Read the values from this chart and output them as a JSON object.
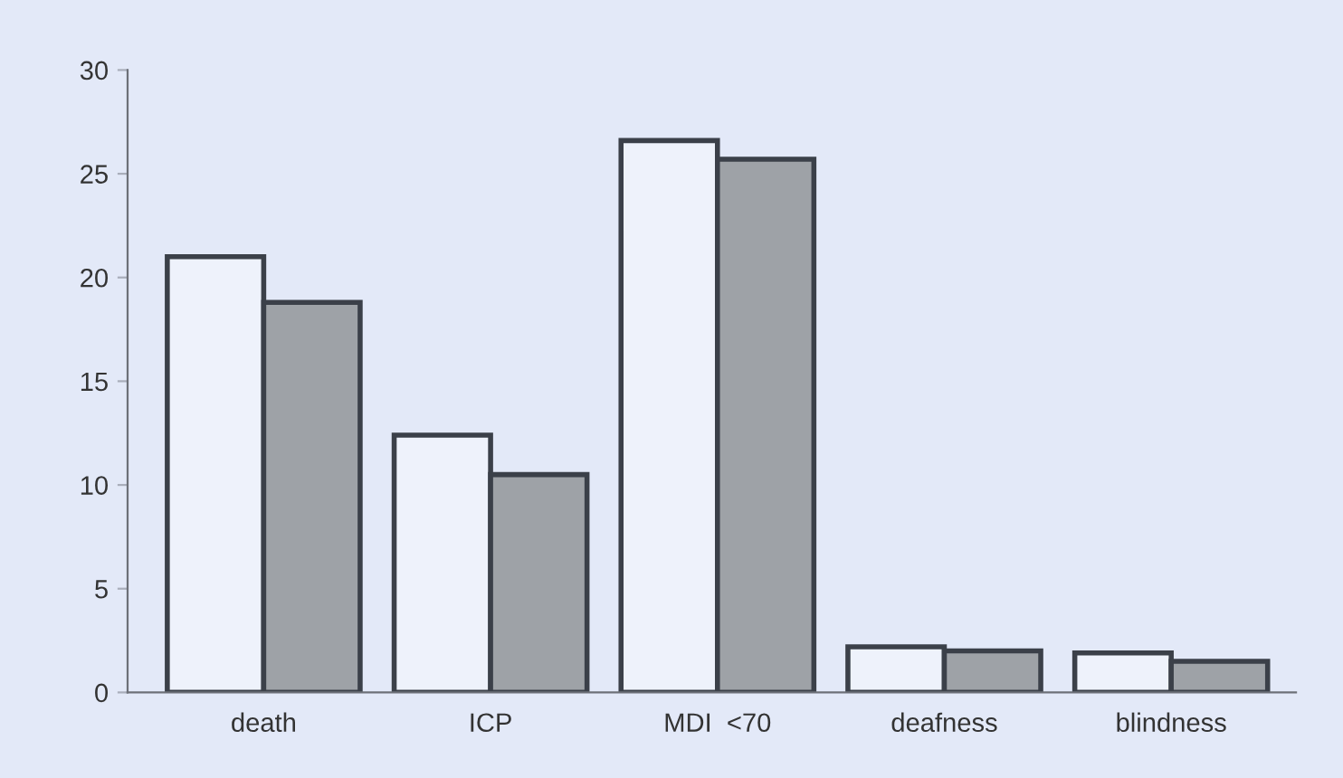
{
  "chart_data": {
    "type": "bar",
    "categories": [
      "death",
      "ICP",
      "MDI  <70",
      "deafness",
      "blindness"
    ],
    "series": [
      {
        "color": "#eef2fb",
        "values": [
          21.0,
          12.4,
          26.6,
          2.2,
          1.9
        ]
      },
      {
        "color": "#9ea2a7",
        "values": [
          18.8,
          10.5,
          25.7,
          2.0,
          1.5
        ]
      }
    ],
    "ylim": [
      0,
      30
    ],
    "yticks": [
      0,
      5,
      10,
      15,
      20,
      25,
      30
    ],
    "grid": false,
    "legend": false
  }
}
